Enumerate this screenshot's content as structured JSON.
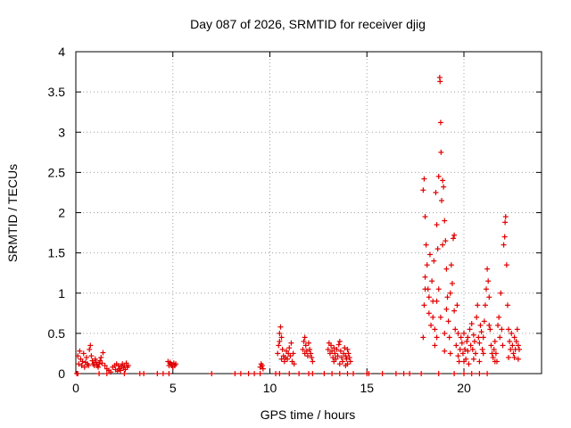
{
  "chart_data": {
    "type": "scatter",
    "title": "Day 087 of 2026, SRMTID for receiver djig",
    "xlabel": "GPS time / hours",
    "ylabel": "SRMTID / TECUs",
    "xlim": [
      0,
      24
    ],
    "ylim": [
      0,
      4
    ],
    "xticks": [
      0,
      5,
      10,
      15,
      20
    ],
    "xtick_labels": [
      "0",
      "5",
      "10",
      "15",
      "20"
    ],
    "yticks": [
      0,
      0.5,
      1,
      1.5,
      2,
      2.5,
      3,
      3.5,
      4
    ],
    "ytick_labels": [
      "0",
      "0.5",
      "1",
      "1.5",
      "2",
      "2.5",
      "3",
      "3.5",
      "4"
    ],
    "grid": true,
    "marker": "+",
    "series_color": "#e00000",
    "series": [
      {
        "name": "SRMTID",
        "points": [
          [
            0.1,
            0.22
          ],
          [
            0.15,
            0.12
          ],
          [
            0.2,
            0.28
          ],
          [
            0.25,
            0.18
          ],
          [
            0.3,
            0.1
          ],
          [
            0.35,
            0.15
          ],
          [
            0.4,
            0.25
          ],
          [
            0.45,
            0.08
          ],
          [
            0.5,
            0.14
          ],
          [
            0.55,
            0.2
          ],
          [
            0.6,
            0.12
          ],
          [
            0.65,
            0.1
          ],
          [
            0.7,
            0.3
          ],
          [
            0.75,
            0.35
          ],
          [
            0.8,
            0.22
          ],
          [
            0.85,
            0.16
          ],
          [
            0.9,
            0.12
          ],
          [
            0.95,
            0.1
          ],
          [
            1.0,
            0.18
          ],
          [
            1.05,
            0.14
          ],
          [
            1.1,
            0.1
          ],
          [
            1.15,
            0.08
          ],
          [
            1.2,
            0.12
          ],
          [
            1.25,
            0.16
          ],
          [
            1.3,
            0.2
          ],
          [
            1.35,
            0.13
          ],
          [
            1.4,
            0.26
          ],
          [
            1.5,
            0.1
          ],
          [
            1.6,
            0.06
          ],
          [
            1.7,
            0.04
          ],
          [
            1.8,
            0.02
          ],
          [
            1.9,
            0.08
          ],
          [
            2.0,
            0.1
          ],
          [
            2.05,
            0.05
          ],
          [
            2.1,
            0.12
          ],
          [
            2.15,
            0.03
          ],
          [
            2.2,
            0.1
          ],
          [
            2.25,
            0.06
          ],
          [
            2.3,
            0.04
          ],
          [
            2.35,
            0.09
          ],
          [
            2.4,
            0.12
          ],
          [
            2.45,
            0.07
          ],
          [
            2.5,
            0.1
          ],
          [
            2.55,
            0.05
          ],
          [
            2.6,
            0.13
          ],
          [
            2.65,
            0.08
          ],
          [
            2.7,
            0.1
          ],
          [
            0.05,
            0.0
          ],
          [
            0.1,
            0.0
          ],
          [
            1.2,
            0.0
          ],
          [
            1.6,
            0.0
          ],
          [
            2.5,
            0.0
          ],
          [
            3.3,
            0.0
          ],
          [
            3.5,
            0.0
          ],
          [
            4.2,
            0.0
          ],
          [
            4.5,
            0.0
          ],
          [
            4.8,
            0.0
          ],
          [
            4.75,
            0.15
          ],
          [
            4.8,
            0.1
          ],
          [
            4.85,
            0.14
          ],
          [
            4.9,
            0.12
          ],
          [
            4.95,
            0.1
          ],
          [
            5.0,
            0.08
          ],
          [
            5.05,
            0.13
          ],
          [
            5.1,
            0.1
          ],
          [
            5.15,
            0.12
          ],
          [
            7.0,
            0.0
          ],
          [
            8.2,
            0.0
          ],
          [
            8.5,
            0.0
          ],
          [
            8.9,
            0.0
          ],
          [
            9.2,
            0.0
          ],
          [
            9.5,
            0.0
          ],
          [
            9.5,
            0.08
          ],
          [
            9.55,
            0.12
          ],
          [
            9.6,
            0.1
          ],
          [
            9.65,
            0.06
          ],
          [
            10.3,
            0.0
          ],
          [
            10.5,
            0.0
          ],
          [
            11.0,
            0.0
          ],
          [
            11.5,
            0.0
          ],
          [
            12.0,
            0.0
          ],
          [
            12.2,
            0.0
          ],
          [
            10.4,
            0.25
          ],
          [
            10.45,
            0.35
          ],
          [
            10.5,
            0.5
          ],
          [
            10.55,
            0.58
          ],
          [
            10.6,
            0.45
          ],
          [
            10.65,
            0.3
          ],
          [
            10.7,
            0.22
          ],
          [
            10.75,
            0.15
          ],
          [
            10.8,
            0.2
          ],
          [
            10.85,
            0.28
          ],
          [
            10.9,
            0.18
          ],
          [
            10.95,
            0.25
          ],
          [
            11.0,
            0.32
          ],
          [
            11.05,
            0.22
          ],
          [
            11.1,
            0.38
          ],
          [
            11.15,
            0.15
          ],
          [
            11.2,
            0.25
          ],
          [
            11.25,
            0.12
          ],
          [
            10.5,
            0.4
          ],
          [
            10.6,
            0.18
          ],
          [
            11.7,
            0.3
          ],
          [
            11.75,
            0.4
          ],
          [
            11.8,
            0.45
          ],
          [
            11.85,
            0.35
          ],
          [
            11.9,
            0.28
          ],
          [
            11.95,
            0.22
          ],
          [
            12.0,
            0.38
          ],
          [
            12.05,
            0.3
          ],
          [
            12.1,
            0.25
          ],
          [
            12.15,
            0.2
          ],
          [
            12.2,
            0.15
          ],
          [
            11.8,
            0.25
          ],
          [
            12.8,
            0.0
          ],
          [
            13.2,
            0.0
          ],
          [
            13.6,
            0.0
          ],
          [
            14.0,
            0.0
          ],
          [
            14.3,
            0.0
          ],
          [
            15.0,
            0.0
          ],
          [
            15.1,
            0.0
          ],
          [
            15.8,
            0.0
          ],
          [
            16.5,
            0.0
          ],
          [
            16.9,
            0.0
          ],
          [
            17.2,
            0.0
          ],
          [
            17.8,
            0.0
          ],
          [
            13.0,
            0.3
          ],
          [
            13.05,
            0.38
          ],
          [
            13.1,
            0.25
          ],
          [
            13.15,
            0.35
          ],
          [
            13.2,
            0.28
          ],
          [
            13.25,
            0.2
          ],
          [
            13.3,
            0.32
          ],
          [
            13.35,
            0.25
          ],
          [
            13.4,
            0.18
          ],
          [
            13.45,
            0.3
          ],
          [
            13.5,
            0.22
          ],
          [
            13.55,
            0.36
          ],
          [
            13.6,
            0.4
          ],
          [
            13.65,
            0.28
          ],
          [
            13.7,
            0.2
          ],
          [
            13.75,
            0.15
          ],
          [
            13.8,
            0.25
          ],
          [
            13.85,
            0.32
          ],
          [
            13.9,
            0.22
          ],
          [
            13.95,
            0.18
          ],
          [
            14.0,
            0.3
          ],
          [
            14.05,
            0.25
          ],
          [
            14.1,
            0.2
          ],
          [
            14.15,
            0.15
          ],
          [
            13.3,
            0.15
          ],
          [
            13.6,
            0.12
          ],
          [
            13.9,
            0.1
          ],
          [
            14.0,
            0.12
          ],
          [
            17.9,
            2.28
          ],
          [
            17.95,
            2.42
          ],
          [
            18.0,
            1.95
          ],
          [
            18.05,
            1.6
          ],
          [
            18.0,
            1.2
          ],
          [
            17.95,
            0.85
          ],
          [
            17.9,
            0.45
          ],
          [
            18.1,
            1.35
          ],
          [
            18.15,
            1.05
          ],
          [
            18.2,
            0.75
          ],
          [
            18.25,
            1.48
          ],
          [
            18.3,
            0.6
          ],
          [
            18.35,
            1.15
          ],
          [
            18.4,
            0.9
          ],
          [
            18.45,
            1.4
          ],
          [
            18.5,
            0.55
          ],
          [
            18.55,
            2.25
          ],
          [
            18.6,
            1.85
          ],
          [
            18.65,
            1.55
          ],
          [
            18.7,
            2.45
          ],
          [
            18.75,
            3.68
          ],
          [
            18.77,
            3.63
          ],
          [
            18.8,
            3.12
          ],
          [
            18.82,
            2.75
          ],
          [
            18.85,
            2.15
          ],
          [
            18.9,
            2.4
          ],
          [
            18.95,
            2.32
          ],
          [
            19.0,
            1.9
          ],
          [
            19.05,
            1.65
          ],
          [
            19.1,
            1.3
          ],
          [
            19.15,
            0.95
          ],
          [
            19.2,
            0.65
          ],
          [
            18.5,
            0.35
          ],
          [
            18.6,
            0.9
          ],
          [
            18.7,
            1.05
          ],
          [
            18.8,
            0.7
          ],
          [
            18.9,
            1.6
          ],
          [
            19.0,
            0.5
          ],
          [
            19.1,
            0.8
          ],
          [
            19.25,
            0.45
          ],
          [
            19.3,
            0.25
          ],
          [
            19.35,
            1.35
          ],
          [
            19.4,
            1.12
          ],
          [
            19.45,
            1.68
          ],
          [
            19.5,
            1.72
          ],
          [
            19.55,
            0.55
          ],
          [
            19.6,
            0.35
          ],
          [
            19.65,
            0.85
          ],
          [
            19.7,
            0.22
          ],
          [
            19.75,
            0.15
          ],
          [
            19.8,
            0.3
          ],
          [
            19.85,
            0.45
          ],
          [
            19.9,
            0.38
          ],
          [
            19.95,
            0.25
          ],
          [
            20.0,
            0.5
          ],
          [
            20.05,
            0.3
          ],
          [
            20.1,
            0.18
          ],
          [
            20.15,
            0.4
          ],
          [
            20.2,
            0.28
          ],
          [
            20.25,
            0.12
          ],
          [
            20.3,
            0.55
          ],
          [
            20.35,
            0.35
          ],
          [
            20.4,
            0.62
          ],
          [
            20.45,
            0.3
          ],
          [
            20.5,
            0.48
          ],
          [
            20.55,
            0.4
          ],
          [
            20.6,
            0.25
          ],
          [
            20.65,
            0.7
          ],
          [
            20.7,
            0.85
          ],
          [
            20.75,
            0.45
          ],
          [
            20.8,
            0.38
          ],
          [
            20.85,
            0.6
          ],
          [
            20.9,
            0.52
          ],
          [
            20.95,
            0.3
          ],
          [
            21.0,
            0.25
          ],
          [
            21.05,
            0.65
          ],
          [
            21.1,
            0.85
          ],
          [
            21.15,
            1.05
          ],
          [
            21.2,
            1.3
          ],
          [
            21.25,
            1.15
          ],
          [
            21.3,
            0.95
          ],
          [
            21.35,
            0.55
          ],
          [
            21.4,
            0.35
          ],
          [
            21.45,
            0.25
          ],
          [
            21.5,
            0.2
          ],
          [
            21.55,
            0.3
          ],
          [
            21.6,
            0.4
          ],
          [
            21.65,
            0.25
          ],
          [
            21.7,
            0.15
          ],
          [
            21.75,
            0.6
          ],
          [
            21.8,
            0.7
          ],
          [
            21.85,
            0.45
          ],
          [
            21.9,
            1.0
          ],
          [
            21.95,
            0.55
          ],
          [
            22.0,
            0.35
          ],
          [
            22.05,
            1.6
          ],
          [
            22.1,
            1.7
          ],
          [
            22.12,
            1.88
          ],
          [
            22.15,
            1.95
          ],
          [
            22.2,
            1.35
          ],
          [
            22.25,
            0.85
          ],
          [
            22.3,
            0.55
          ],
          [
            22.35,
            0.4
          ],
          [
            22.4,
            0.3
          ],
          [
            22.45,
            0.5
          ],
          [
            22.5,
            0.35
          ],
          [
            22.55,
            0.25
          ],
          [
            22.6,
            0.45
          ],
          [
            22.65,
            0.3
          ],
          [
            22.7,
            0.4
          ],
          [
            22.75,
            0.55
          ],
          [
            22.8,
            0.35
          ],
          [
            22.85,
            0.3
          ],
          [
            18.0,
            1.05
          ],
          [
            18.2,
            0.95
          ],
          [
            18.4,
            0.7
          ],
          [
            18.6,
            0.45
          ],
          [
            19.3,
            1.0
          ],
          [
            19.5,
            0.78
          ],
          [
            19.7,
            0.5
          ],
          [
            20.0,
            0.15
          ],
          [
            20.2,
            0.45
          ],
          [
            20.5,
            0.18
          ],
          [
            20.8,
            0.15
          ],
          [
            21.0,
            0.45
          ],
          [
            21.3,
            0.6
          ],
          [
            21.6,
            0.15
          ],
          [
            22.3,
            0.2
          ],
          [
            22.6,
            0.2
          ],
          [
            22.8,
            0.18
          ],
          [
            19.0,
            0.28
          ],
          [
            18.7,
            0.0
          ],
          [
            19.5,
            0.0
          ],
          [
            20.0,
            0.0
          ],
          [
            20.4,
            0.0
          ],
          [
            20.8,
            0.0
          ],
          [
            21.2,
            0.0
          ]
        ]
      }
    ]
  }
}
